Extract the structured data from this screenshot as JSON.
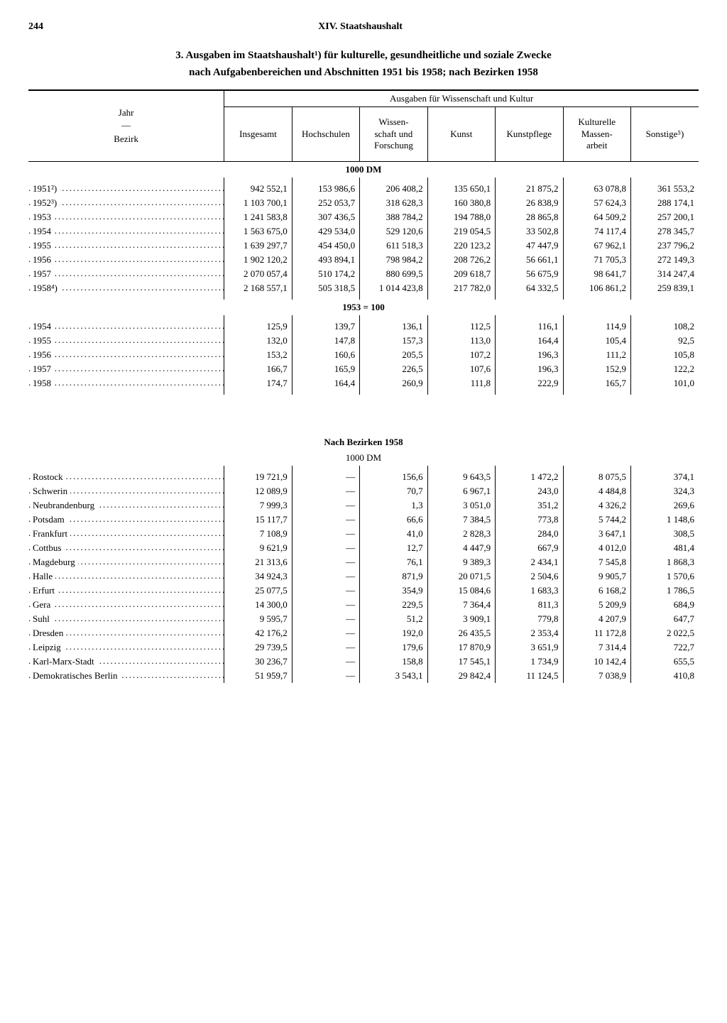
{
  "page_number": "244",
  "chapter_header": "XIV. Staatshaushalt",
  "title_line1": "3. Ausgaben im Staatshaushalt¹) für kulturelle, gesundheitliche und soziale Zwecke",
  "title_line2": "nach Aufgabenbereichen und Abschnitten 1951 bis 1958; nach Bezirken 1958",
  "stub_header_top": "Jahr",
  "stub_header_mid": "—",
  "stub_header_bot": "Bezirk",
  "group_header": "Ausgaben für Wissenschaft und Kultur",
  "columns": [
    "Insgesamt",
    "Hochschulen",
    "Wissen-\nschaft und\nForschung",
    "Kunst",
    "Kunstpflege",
    "Kulturelle\nMassen-\narbeit",
    "Sonstige⁵)"
  ],
  "section1_heading": "1000 DM",
  "section1": {
    "labels": [
      "1951²)",
      "1952³)",
      "1953",
      "1954",
      "1955",
      "1956",
      "1957",
      "1958⁴)"
    ],
    "rows": [
      [
        "942 552,1",
        "153 986,6",
        "206 408,2",
        "135 650,1",
        "21 875,2",
        "63 078,8",
        "361 553,2"
      ],
      [
        "1 103 700,1",
        "252 053,7",
        "318 628,3",
        "160 380,8",
        "26 838,9",
        "57 624,3",
        "288 174,1"
      ],
      [
        "1 241 583,8",
        "307 436,5",
        "388 784,2",
        "194 788,0",
        "28 865,8",
        "64 509,2",
        "257 200,1"
      ],
      [
        "1 563 675,0",
        "429 534,0",
        "529 120,6",
        "219 054,5",
        "33 502,8",
        "74 117,4",
        "278 345,7"
      ],
      [
        "1 639 297,7",
        "454 450,0",
        "611 518,3",
        "220 123,2",
        "47 447,9",
        "67 962,1",
        "237 796,2"
      ],
      [
        "1 902 120,2",
        "493 894,1",
        "798 984,2",
        "208 726,2",
        "56 661,1",
        "71 705,3",
        "272 149,3"
      ],
      [
        "2 070 057,4",
        "510 174,2",
        "880 699,5",
        "209 618,7",
        "56 675,9",
        "98 641,7",
        "314 247,4"
      ],
      [
        "2 168 557,1",
        "505 318,5",
        "1 014 423,8",
        "217 782,0",
        "64 332,5",
        "106 861,2",
        "259 839,1"
      ]
    ]
  },
  "section2_heading": "1953 = 100",
  "section2": {
    "labels": [
      "1954",
      "1955",
      "1956",
      "1957",
      "1958"
    ],
    "rows": [
      [
        "125,9",
        "139,7",
        "136,1",
        "112,5",
        "116,1",
        "114,9",
        "108,2"
      ],
      [
        "132,0",
        "147,8",
        "157,3",
        "113,0",
        "164,4",
        "105,4",
        "92,5"
      ],
      [
        "153,2",
        "160,6",
        "205,5",
        "107,2",
        "196,3",
        "111,2",
        "105,8"
      ],
      [
        "166,7",
        "165,9",
        "226,5",
        "107,6",
        "196,3",
        "152,9",
        "122,2"
      ],
      [
        "174,7",
        "164,4",
        "260,9",
        "111,8",
        "222,9",
        "165,7",
        "101,0"
      ]
    ]
  },
  "section3_heading": "Nach Bezirken 1958",
  "section3_sub": "1000 DM",
  "section3": {
    "labels": [
      "Rostock",
      "Schwerin",
      "Neubrandenburg",
      "Potsdam",
      "Frankfurt",
      "Cottbus",
      "Magdeburg",
      "Halle",
      "Erfurt",
      "Gera",
      "Suhl",
      "Dresden",
      "Leipzig",
      "Karl-Marx-Stadt",
      "Demokratisches Berlin"
    ],
    "rows": [
      [
        "19 721,9",
        "—",
        "156,6",
        "9 643,5",
        "1 472,2",
        "8 075,5",
        "374,1"
      ],
      [
        "12 089,9",
        "—",
        "70,7",
        "6 967,1",
        "243,0",
        "4 484,8",
        "324,3"
      ],
      [
        "7 999,3",
        "—",
        "1,3",
        "3 051,0",
        "351,2",
        "4 326,2",
        "269,6"
      ],
      [
        "15 117,7",
        "—",
        "66,6",
        "7 384,5",
        "773,8",
        "5 744,2",
        "1 148,6"
      ],
      [
        "7 108,9",
        "—",
        "41,0",
        "2 828,3",
        "284,0",
        "3 647,1",
        "308,5"
      ],
      [
        "9 621,9",
        "—",
        "12,7",
        "4 447,9",
        "667,9",
        "4 012,0",
        "481,4"
      ],
      [
        "21 313,6",
        "—",
        "76,1",
        "9 389,3",
        "2 434,1",
        "7 545,8",
        "1 868,3"
      ],
      [
        "34 924,3",
        "—",
        "871,9",
        "20 071,5",
        "2 504,6",
        "9 905,7",
        "1 570,6"
      ],
      [
        "25 077,5",
        "—",
        "354,9",
        "15 084,6",
        "1 683,3",
        "6 168,2",
        "1 786,5"
      ],
      [
        "14 300,0",
        "—",
        "229,5",
        "7 364,4",
        "811,3",
        "5 209,9",
        "684,9"
      ],
      [
        "9 595,7",
        "—",
        "51,2",
        "3 909,1",
        "779,8",
        "4 207,9",
        "647,7"
      ],
      [
        "42 176,2",
        "—",
        "192,0",
        "26 435,5",
        "2 353,4",
        "11 172,8",
        "2 022,5"
      ],
      [
        "29 739,5",
        "—",
        "179,6",
        "17 870,9",
        "3 651,9",
        "7 314,4",
        "722,7"
      ],
      [
        "30 236,7",
        "—",
        "158,8",
        "17 545,1",
        "1 734,9",
        "10 142,4",
        "655,5"
      ],
      [
        "51 959,7",
        "—",
        "3 543,1",
        "29 842,4",
        "11 124,5",
        "7 038,9",
        "410,8"
      ]
    ]
  }
}
